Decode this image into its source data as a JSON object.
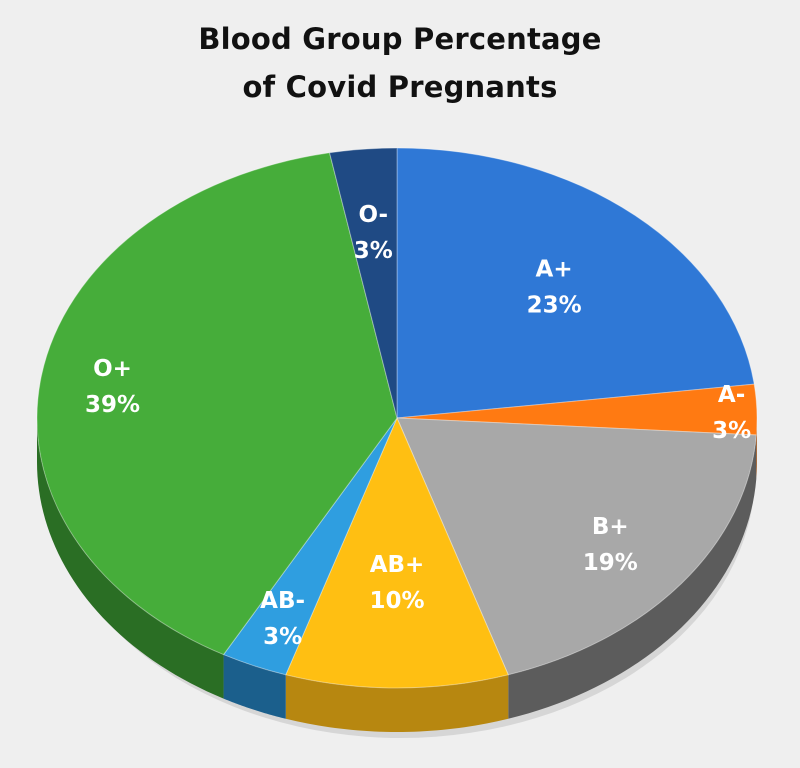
{
  "chart_data": {
    "type": "pie",
    "title": [
      "Blood Group Percentage",
      "of Covid Pregnants"
    ],
    "slices": [
      {
        "name": "A+",
        "label": "23%",
        "value": 23,
        "color": "#2f78d6",
        "side_color": "#1f4f8e"
      },
      {
        "name": "A-",
        "label": "3%",
        "value": 3,
        "color": "#ff7a12",
        "side_color": "#b8560a"
      },
      {
        "name": "B+",
        "label": "19%",
        "value": 19,
        "color": "#a8a8a8",
        "side_color": "#5c5c5c"
      },
      {
        "name": "AB+",
        "label": "10%",
        "value": 10,
        "color": "#ffbf12",
        "side_color": "#b78710"
      },
      {
        "name": "AB-",
        "label": "3%",
        "value": 3,
        "color": "#2f9ee0",
        "side_color": "#1b5f8c"
      },
      {
        "name": "O+",
        "label": "39%",
        "value": 39,
        "color": "#46ad3a",
        "side_color": "#2a6e24"
      },
      {
        "name": "O-",
        "label": "3%",
        "value": 3,
        "color": "#1f4a84",
        "side_color": "#132f56"
      }
    ],
    "legend": "none",
    "style": "3d-tilted"
  }
}
